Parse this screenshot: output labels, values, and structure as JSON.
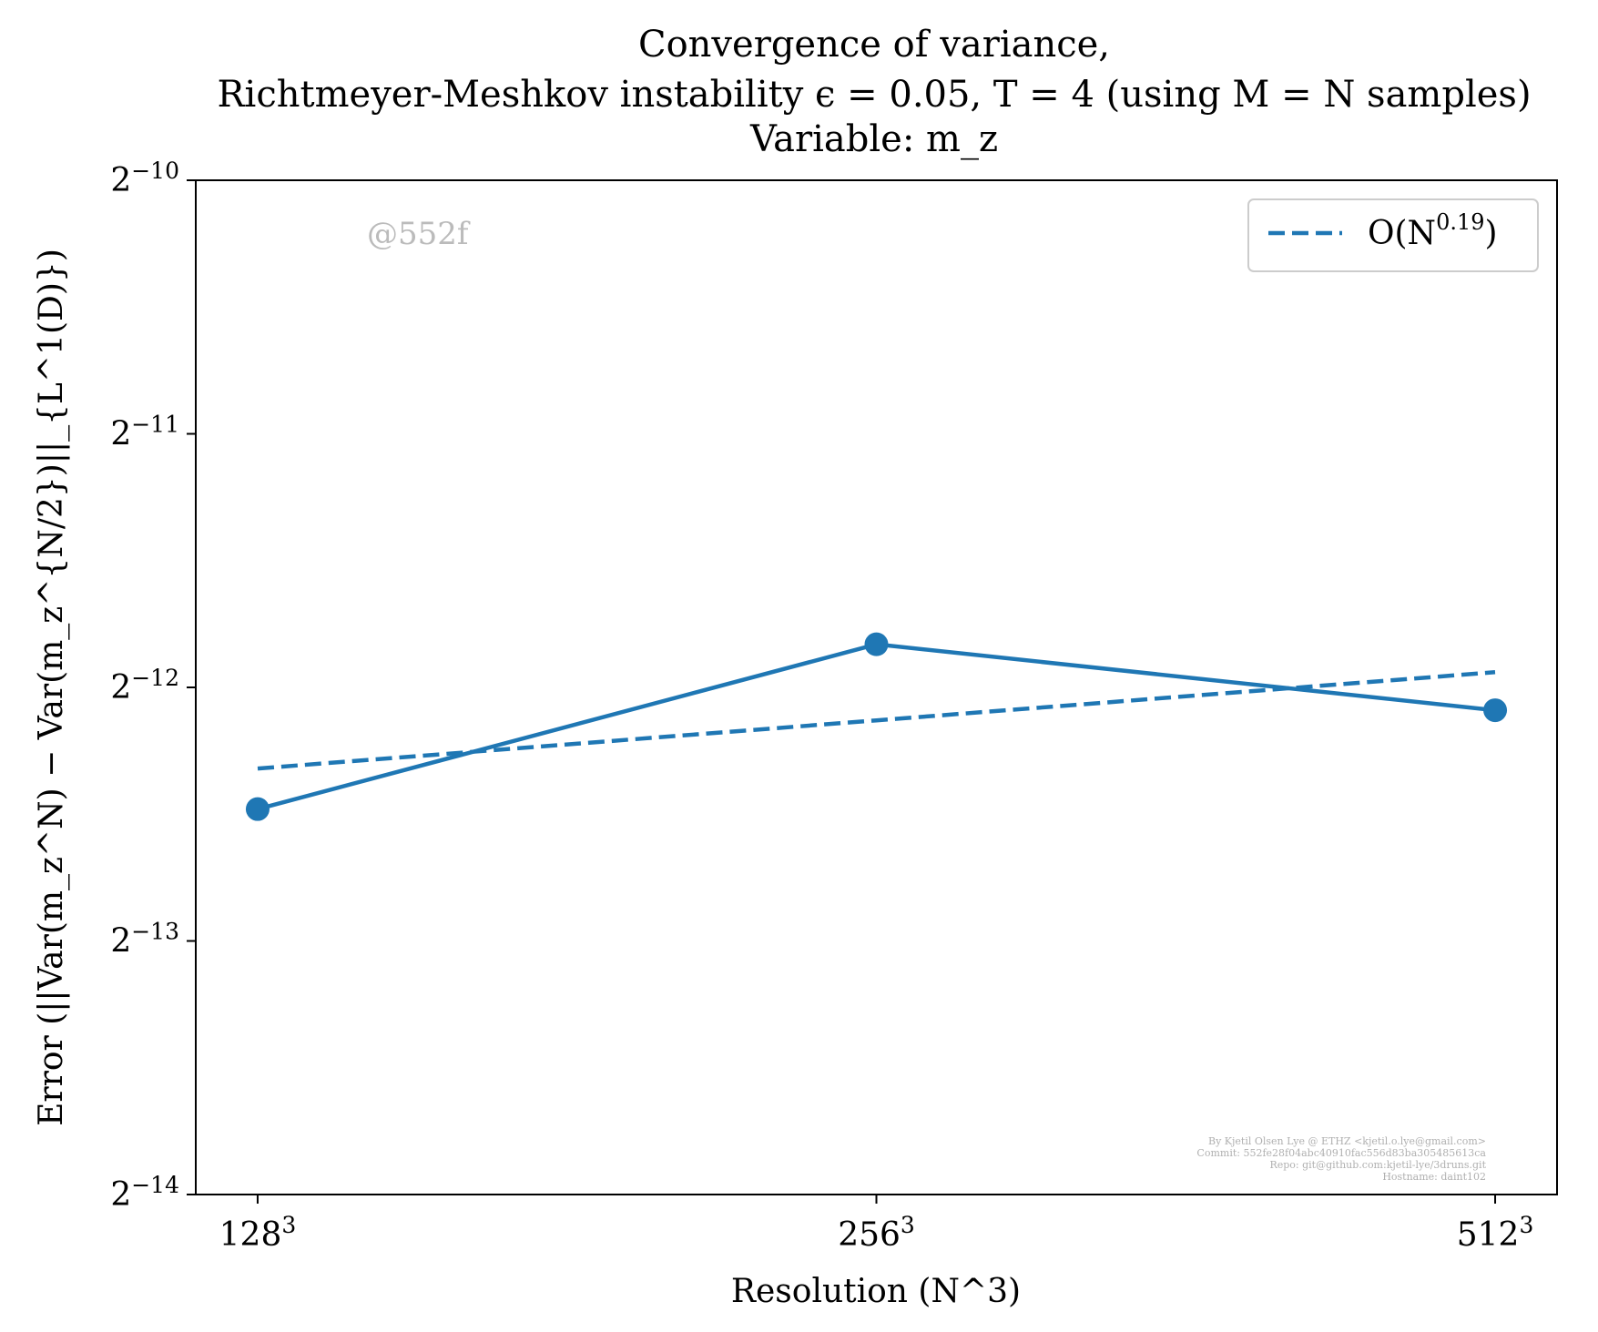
{
  "chart_data": {
    "type": "line",
    "title_lines": [
      "Convergence of variance,",
      "Richtmeyer-Meshkov instability ϵ = 0.05, T = 4 (using M = N samples)",
      "Variable: m_z"
    ],
    "xlabel": "Resolution (N^3)",
    "ylabel": "Error (||Var(m_z^N) − Var(m_z^{N/2})||_{L^1(D)})",
    "x_ticks": [
      {
        "value": 128,
        "base": "128",
        "exp": "3"
      },
      {
        "value": 256,
        "base": "256",
        "exp": "3"
      },
      {
        "value": 512,
        "base": "512",
        "exp": "3"
      }
    ],
    "y_ticks": [
      {
        "value": -10,
        "base": "2",
        "exp": "−10"
      },
      {
        "value": -11,
        "base": "2",
        "exp": "−11"
      },
      {
        "value": -12,
        "base": "2",
        "exp": "−12"
      },
      {
        "value": -13,
        "base": "2",
        "exp": "−13"
      },
      {
        "value": -14,
        "base": "2",
        "exp": "−14"
      }
    ],
    "x_scale": "log2",
    "y_scale": "log2",
    "ylim_log2": [
      -14,
      -10
    ],
    "xlim_log2": [
      6.9,
      9.1
    ],
    "series": [
      {
        "style": "solid-markers",
        "color": "#1f77b4",
        "x": [
          128,
          256,
          512
        ],
        "y_log2": [
          -12.48,
          -11.83,
          -12.09
        ]
      },
      {
        "name": "O(N^0.19)",
        "style": "dashed",
        "color": "#1f77b4",
        "x": [
          128,
          256,
          512
        ],
        "y_log2": [
          -12.32,
          -12.13,
          -11.94
        ]
      }
    ],
    "legend": {
      "position": "top-right",
      "entries": [
        {
          "text": "O(N",
          "exp": "0.19",
          "suffix": ")"
        }
      ]
    },
    "grid": false,
    "watermark": "@552f",
    "credits": [
      "By Kjetil Olsen Lye @ ETHZ <kjetil.o.lye@gmail.com>",
      "Commit: 552fe28f04abc40910fac556d83ba305485613ca",
      "Repo: git@github.com:kjetil-lye/3druns.git",
      "Hostname: daint102"
    ]
  }
}
